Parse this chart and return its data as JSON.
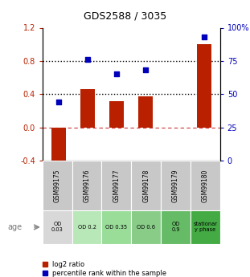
{
  "title": "GDS2588 / 3035",
  "samples": [
    "GSM99175",
    "GSM99176",
    "GSM99177",
    "GSM99178",
    "GSM99179",
    "GSM99180"
  ],
  "log2_ratio": [
    -0.46,
    0.46,
    0.32,
    0.37,
    0.0,
    1.0
  ],
  "percentile_rank": [
    44,
    76,
    65,
    68,
    null,
    93
  ],
  "ylim_left": [
    -0.4,
    1.2
  ],
  "ylim_right": [
    0,
    100
  ],
  "yticks_left": [
    -0.4,
    0.0,
    0.4,
    0.8,
    1.2
  ],
  "yticks_right": [
    0,
    25,
    50,
    75,
    100
  ],
  "hlines": [
    0.4,
    0.8
  ],
  "hline_zero": 0.0,
  "bar_color": "#b82000",
  "dot_color": "#0000bb",
  "dotted_line_color": "#000000",
  "zero_line_color": "#cc3333",
  "age_labels": [
    "OD\n0.03",
    "OD 0.2",
    "OD 0.35",
    "OD 0.6",
    "OD\n0.9",
    "stationar\ny phase"
  ],
  "age_colors": [
    "#d8d8d8",
    "#b8e8b8",
    "#99dd99",
    "#88cc88",
    "#66bb66",
    "#44aa44"
  ],
  "sample_bg_color": "#c8c8c8",
  "legend_red_label": "log2 ratio",
  "legend_blue_label": "percentile rank within the sample",
  "age_row_label": "age",
  "bar_width": 0.5
}
